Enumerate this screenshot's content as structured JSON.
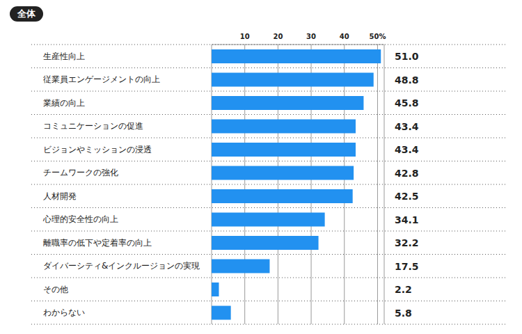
{
  "chart_data": {
    "type": "bar",
    "title": "全体",
    "orientation": "horizontal",
    "categories": [
      "生産性向上",
      "従業員エンゲージメントの向上",
      "業績の向上",
      "コミュニケーションの促進",
      "ビジョンやミッションの浸透",
      "チームワークの強化",
      "人材開発",
      "心理的安全性の向上",
      "離職率の低下や定着率の向上",
      "ダイバーシティ&インクルージョンの実現",
      "その他",
      "わからない"
    ],
    "values": [
      51.0,
      48.8,
      45.8,
      43.4,
      43.4,
      42.8,
      42.5,
      34.1,
      32.2,
      17.5,
      2.2,
      5.8
    ],
    "value_labels": [
      "51.0",
      "48.8",
      "45.8",
      "43.4",
      "43.4",
      "42.8",
      "42.5",
      "34.1",
      "32.2",
      "17.5",
      "2.2",
      "5.8"
    ],
    "color": "#2291f0",
    "xlim": [
      0,
      52
    ],
    "xticks": [
      10,
      20,
      30,
      40,
      {
        "value": 50,
        "label": "50%"
      }
    ],
    "grid": true,
    "data_labels": true
  }
}
